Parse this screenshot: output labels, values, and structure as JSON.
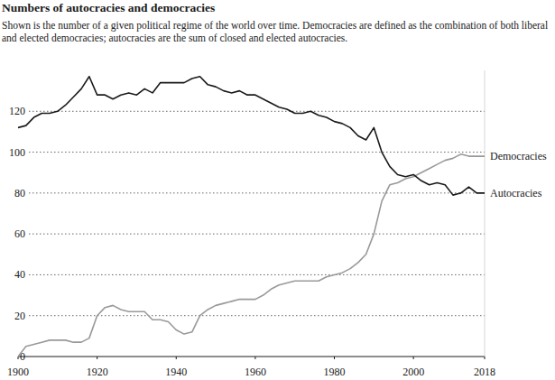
{
  "chart_data": {
    "type": "line",
    "title": "Numbers of autocracies and democracies",
    "subtitle": "Shown is the number of a given political regime of the world over time. Democracies are defined as the combination of both liberal and elected democracies; autocracies are the sum of closed and elected autocracies.",
    "x": [
      1900,
      1902,
      1904,
      1906,
      1908,
      1910,
      1912,
      1914,
      1916,
      1918,
      1920,
      1922,
      1924,
      1926,
      1928,
      1930,
      1932,
      1934,
      1936,
      1938,
      1940,
      1942,
      1944,
      1946,
      1948,
      1950,
      1952,
      1954,
      1956,
      1958,
      1960,
      1962,
      1964,
      1966,
      1968,
      1970,
      1972,
      1974,
      1976,
      1978,
      1980,
      1982,
      1984,
      1986,
      1988,
      1990,
      1992,
      1994,
      1996,
      1998,
      2000,
      2002,
      2004,
      2006,
      2008,
      2010,
      2012,
      2014,
      2016,
      2018
    ],
    "series": [
      {
        "name": "Democracies",
        "color": "#999999",
        "values": [
          0,
          5,
          6,
          7,
          8,
          8,
          8,
          7,
          7,
          9,
          20,
          24,
          25,
          23,
          22,
          22,
          22,
          18,
          18,
          17,
          13,
          11,
          12,
          20,
          23,
          25,
          26,
          27,
          28,
          28,
          28,
          30,
          33,
          35,
          36,
          37,
          37,
          37,
          37,
          39,
          40,
          41,
          43,
          46,
          50,
          60,
          76,
          84,
          85,
          87,
          88,
          90,
          92,
          94,
          96,
          97,
          99,
          98,
          98,
          98
        ]
      },
      {
        "name": "Autocracies",
        "color": "#1a1a1a",
        "values": [
          112,
          113,
          117,
          119,
          119,
          120,
          123,
          127,
          131,
          137,
          128,
          128,
          126,
          128,
          129,
          128,
          131,
          129,
          134,
          134,
          134,
          134,
          136,
          137,
          133,
          132,
          130,
          129,
          130,
          128,
          128,
          126,
          124,
          122,
          121,
          119,
          119,
          120,
          118,
          117,
          115,
          114,
          112,
          108,
          106,
          112,
          100,
          93,
          89,
          88,
          89,
          86,
          84,
          85,
          84,
          79,
          80,
          83,
          80,
          80
        ]
      }
    ],
    "xlim": [
      1900,
      2018
    ],
    "xticks": [
      1900,
      1920,
      1940,
      1960,
      1980,
      2000,
      2018
    ],
    "ylim": [
      0,
      140
    ],
    "yticks": [
      0,
      20,
      40,
      60,
      80,
      100,
      120
    ],
    "grid": true,
    "legend": "right"
  }
}
